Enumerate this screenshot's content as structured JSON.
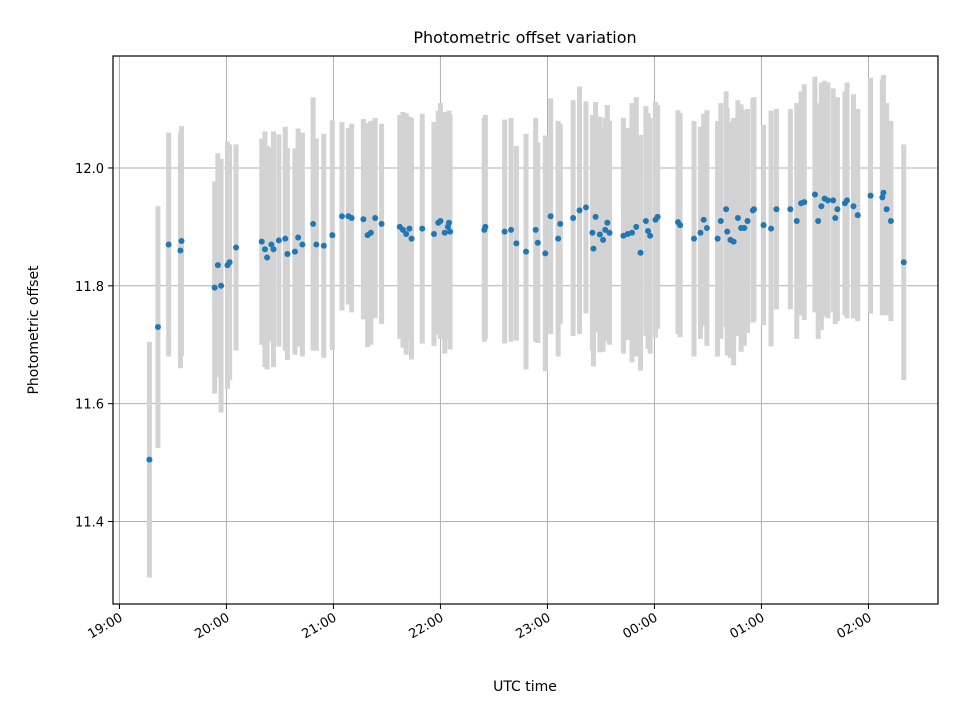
{
  "chart_data": {
    "type": "scatter",
    "title": "Photometric offset variation",
    "xlabel": "UTC time",
    "ylabel": "Photometric offset",
    "x_ticks": [
      "19:00",
      "20:00",
      "21:00",
      "22:00",
      "23:00",
      "00:00",
      "01:00",
      "02:00"
    ],
    "x_unit": "UTC time, hours (after 00:00 shown as 24+)",
    "xlim": [
      18.94,
      26.65
    ],
    "y_ticks": [
      11.4,
      11.6,
      11.8,
      12.0
    ],
    "ylim": [
      11.26,
      12.19
    ],
    "grid": true,
    "marker_color": "#1f77b4",
    "errorbar_color": "#d3d3d3",
    "series": [
      {
        "points": [
          [
            19.28,
            11.505,
            0.2
          ],
          [
            19.36,
            11.73,
            0.205
          ],
          [
            19.46,
            11.87,
            0.19
          ],
          [
            19.57,
            11.86,
            0.2
          ],
          [
            19.58,
            11.876,
            0.195
          ],
          [
            19.89,
            11.797,
            0.18
          ],
          [
            19.92,
            11.835,
            0.19
          ],
          [
            19.95,
            11.8,
            0.215
          ],
          [
            20.01,
            11.835,
            0.21
          ],
          [
            20.03,
            11.84,
            0.2
          ],
          [
            20.09,
            11.865,
            0.175
          ],
          [
            20.33,
            11.875,
            0.175
          ],
          [
            20.36,
            11.862,
            0.2
          ],
          [
            20.38,
            11.848,
            0.19
          ],
          [
            20.42,
            11.87,
            0.165
          ],
          [
            20.44,
            11.862,
            0.2
          ],
          [
            20.49,
            11.877,
            0.18
          ],
          [
            20.55,
            11.88,
            0.19
          ],
          [
            20.57,
            11.854,
            0.18
          ],
          [
            20.64,
            11.858,
            0.175
          ],
          [
            20.67,
            11.882,
            0.185
          ],
          [
            20.71,
            11.87,
            0.19
          ],
          [
            20.81,
            11.905,
            0.215
          ],
          [
            20.84,
            11.87,
            0.18
          ],
          [
            20.91,
            11.868,
            0.19
          ],
          [
            20.99,
            11.886,
            0.195
          ],
          [
            21.08,
            11.918,
            0.16
          ],
          [
            21.14,
            11.918,
            0.15
          ],
          [
            21.17,
            11.915,
            0.16
          ],
          [
            21.28,
            11.913,
            0.17
          ],
          [
            21.32,
            11.886,
            0.19
          ],
          [
            21.35,
            11.89,
            0.19
          ],
          [
            21.39,
            11.915,
            0.17
          ],
          [
            21.45,
            11.905,
            0.17
          ],
          [
            21.62,
            11.9,
            0.19
          ],
          [
            21.65,
            11.895,
            0.2
          ],
          [
            21.68,
            11.888,
            0.205
          ],
          [
            21.71,
            11.897,
            0.19
          ],
          [
            21.73,
            11.88,
            0.205
          ],
          [
            21.83,
            11.897,
            0.195
          ],
          [
            21.94,
            11.888,
            0.19
          ],
          [
            21.98,
            11.907,
            0.19
          ],
          [
            22.0,
            11.91,
            0.2
          ],
          [
            22.04,
            11.89,
            0.205
          ],
          [
            22.07,
            11.9,
            0.19
          ],
          [
            22.08,
            11.907,
            0.19
          ],
          [
            22.09,
            11.892,
            0.2
          ],
          [
            22.41,
            11.895,
            0.19
          ],
          [
            22.42,
            11.9,
            0.19
          ],
          [
            22.6,
            11.892,
            0.19
          ],
          [
            22.66,
            11.895,
            0.19
          ],
          [
            22.71,
            11.872,
            0.165
          ],
          [
            22.8,
            11.858,
            0.2
          ],
          [
            22.89,
            11.895,
            0.19
          ],
          [
            22.91,
            11.873,
            0.17
          ],
          [
            22.98,
            11.855,
            0.2
          ],
          [
            23.03,
            11.918,
            0.2
          ],
          [
            23.1,
            11.88,
            0.2
          ],
          [
            23.12,
            11.905,
            0.17
          ],
          [
            23.24,
            11.915,
            0.2
          ],
          [
            23.3,
            11.928,
            0.21
          ],
          [
            23.36,
            11.933,
            0.18
          ],
          [
            23.42,
            11.89,
            0.2
          ],
          [
            23.43,
            11.863,
            0.2
          ],
          [
            23.45,
            11.917,
            0.195
          ],
          [
            23.49,
            11.887,
            0.2
          ],
          [
            23.52,
            11.878,
            0.19
          ],
          [
            23.54,
            11.895,
            0.19
          ],
          [
            23.56,
            11.907,
            0.2
          ],
          [
            23.58,
            11.89,
            0.19
          ],
          [
            23.71,
            11.885,
            0.2
          ],
          [
            23.75,
            11.888,
            0.18
          ],
          [
            23.79,
            11.89,
            0.22
          ],
          [
            23.83,
            11.9,
            0.22
          ],
          [
            23.87,
            11.856,
            0.2
          ],
          [
            23.92,
            11.91,
            0.195
          ],
          [
            23.94,
            11.893,
            0.2
          ],
          [
            23.96,
            11.885,
            0.2
          ],
          [
            24.01,
            11.912,
            0.2
          ],
          [
            24.03,
            11.917,
            0.19
          ],
          [
            24.22,
            11.908,
            0.19
          ],
          [
            24.24,
            11.903,
            0.19
          ],
          [
            24.37,
            11.88,
            0.2
          ],
          [
            24.43,
            11.89,
            0.18
          ],
          [
            24.46,
            11.912,
            0.18
          ],
          [
            24.49,
            11.898,
            0.2
          ],
          [
            24.59,
            11.88,
            0.2
          ],
          [
            24.62,
            11.91,
            0.2
          ],
          [
            24.67,
            11.93,
            0.2
          ],
          [
            24.68,
            11.892,
            0.21
          ],
          [
            24.71,
            11.878,
            0.2
          ],
          [
            24.74,
            11.875,
            0.21
          ],
          [
            24.78,
            11.915,
            0.2
          ],
          [
            24.81,
            11.898,
            0.21
          ],
          [
            24.84,
            11.898,
            0.2
          ],
          [
            24.87,
            11.91,
            0.19
          ],
          [
            24.92,
            11.928,
            0.19
          ],
          [
            24.93,
            11.93,
            0.19
          ],
          [
            25.02,
            11.903,
            0.17
          ],
          [
            25.09,
            11.897,
            0.2
          ],
          [
            25.14,
            11.93,
            0.17
          ],
          [
            25.27,
            11.93,
            0.17
          ],
          [
            25.33,
            11.91,
            0.2
          ],
          [
            25.37,
            11.94,
            0.19
          ],
          [
            25.4,
            11.942,
            0.2
          ],
          [
            25.5,
            11.955,
            0.2
          ],
          [
            25.53,
            11.91,
            0.2
          ],
          [
            25.56,
            11.935,
            0.21
          ],
          [
            25.59,
            11.948,
            0.2
          ],
          [
            25.62,
            11.945,
            0.2
          ],
          [
            25.67,
            11.945,
            0.19
          ],
          [
            25.69,
            11.915,
            0.18
          ],
          [
            25.71,
            11.93,
            0.19
          ],
          [
            25.78,
            11.94,
            0.19
          ],
          [
            25.8,
            11.945,
            0.2
          ],
          [
            25.86,
            11.935,
            0.19
          ],
          [
            25.9,
            11.92,
            0.18
          ],
          [
            26.02,
            11.953,
            0.2
          ],
          [
            26.13,
            11.95,
            0.2
          ],
          [
            26.14,
            11.958,
            0.2
          ],
          [
            26.17,
            11.93,
            0.18
          ],
          [
            26.21,
            11.91,
            0.17
          ],
          [
            26.33,
            11.84,
            0.2
          ]
        ]
      }
    ]
  }
}
